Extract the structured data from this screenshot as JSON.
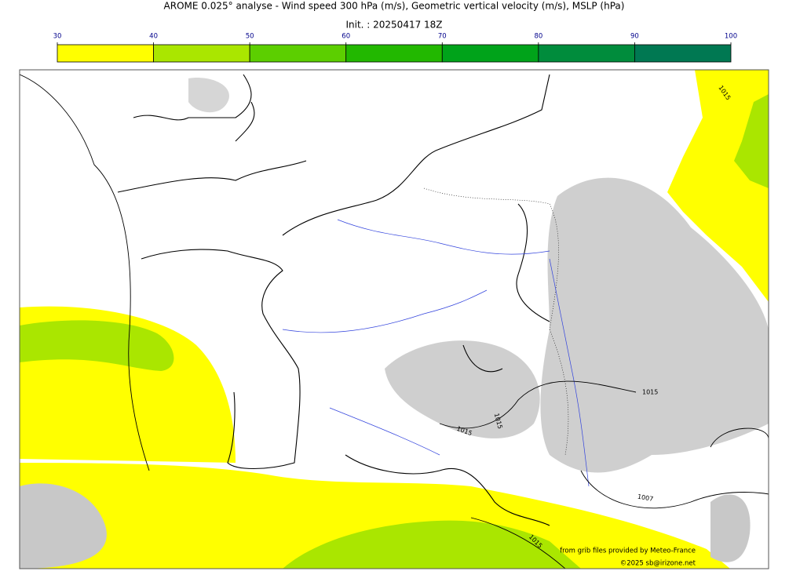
{
  "header": {
    "title": "AROME 0.025° analyse - Wind speed 300 hPa (m/s), Geometric vertical velocity (m/s), MSLP (hPa)",
    "init": "Init. : 20250417 18Z"
  },
  "colorbar": {
    "ticks": [
      30,
      40,
      50,
      60,
      70,
      80,
      90,
      100
    ],
    "colors": [
      "#ffff00",
      "#aae600",
      "#5ccf00",
      "#22b800",
      "#00a31a",
      "#008c3c",
      "#007852"
    ]
  },
  "map": {
    "contour_labels": [
      "1015",
      "1015",
      "1015",
      "1015",
      "1007",
      "1015"
    ]
  },
  "footer": {
    "source": "from grib files provided by Meteo-France",
    "copyright": "©2025 sb@irizone.net"
  }
}
